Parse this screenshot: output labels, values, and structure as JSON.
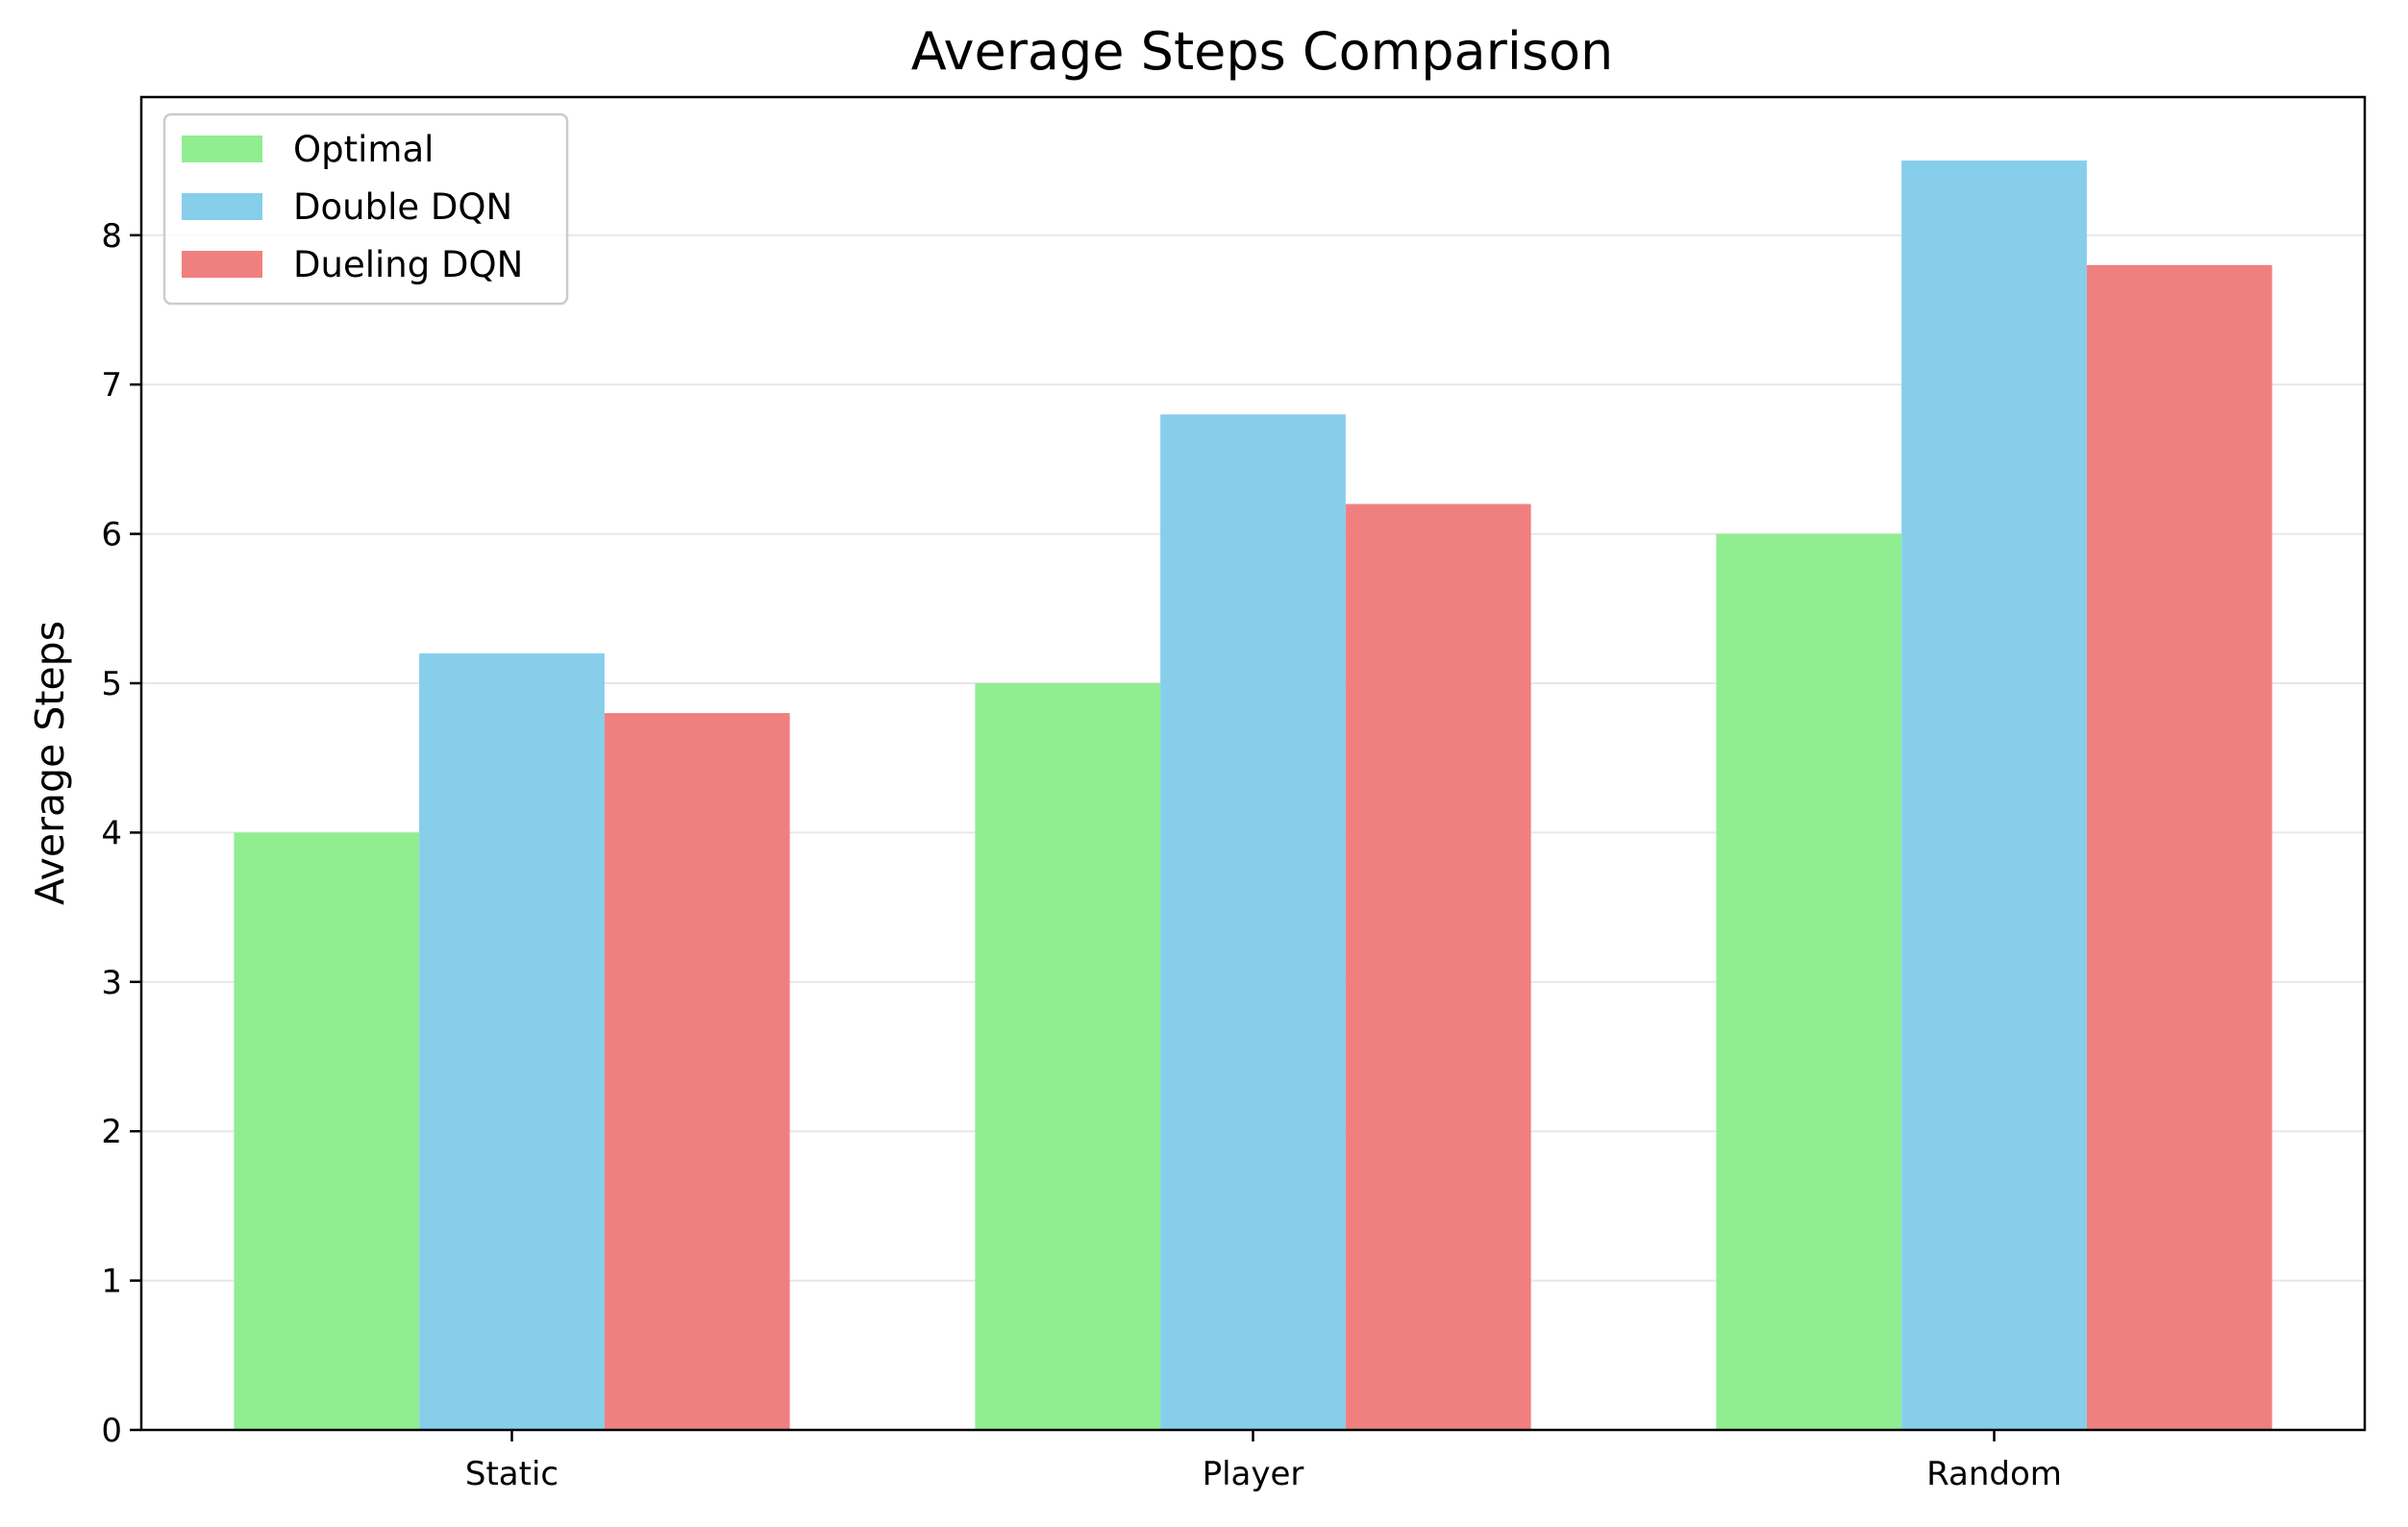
{
  "chart_data": {
    "type": "bar",
    "title": "Average Steps Comparison",
    "xlabel": "",
    "ylabel": "Average Steps",
    "categories": [
      "Static",
      "Player",
      "Random"
    ],
    "series": [
      {
        "name": "Optimal",
        "values": [
          4,
          5,
          6
        ],
        "color": "#90ee90"
      },
      {
        "name": "Double DQN",
        "values": [
          5.2,
          6.8,
          8.5
        ],
        "color": "#87ceeb"
      },
      {
        "name": "Dueling DQN",
        "values": [
          4.8,
          6.2,
          7.8
        ],
        "color": "#f08080"
      }
    ],
    "ylim": [
      0,
      8.925
    ],
    "yticks": [
      "0",
      "1",
      "2",
      "3",
      "4",
      "5",
      "6",
      "7",
      "8"
    ],
    "grid": "y",
    "legend_position": "top-left"
  }
}
